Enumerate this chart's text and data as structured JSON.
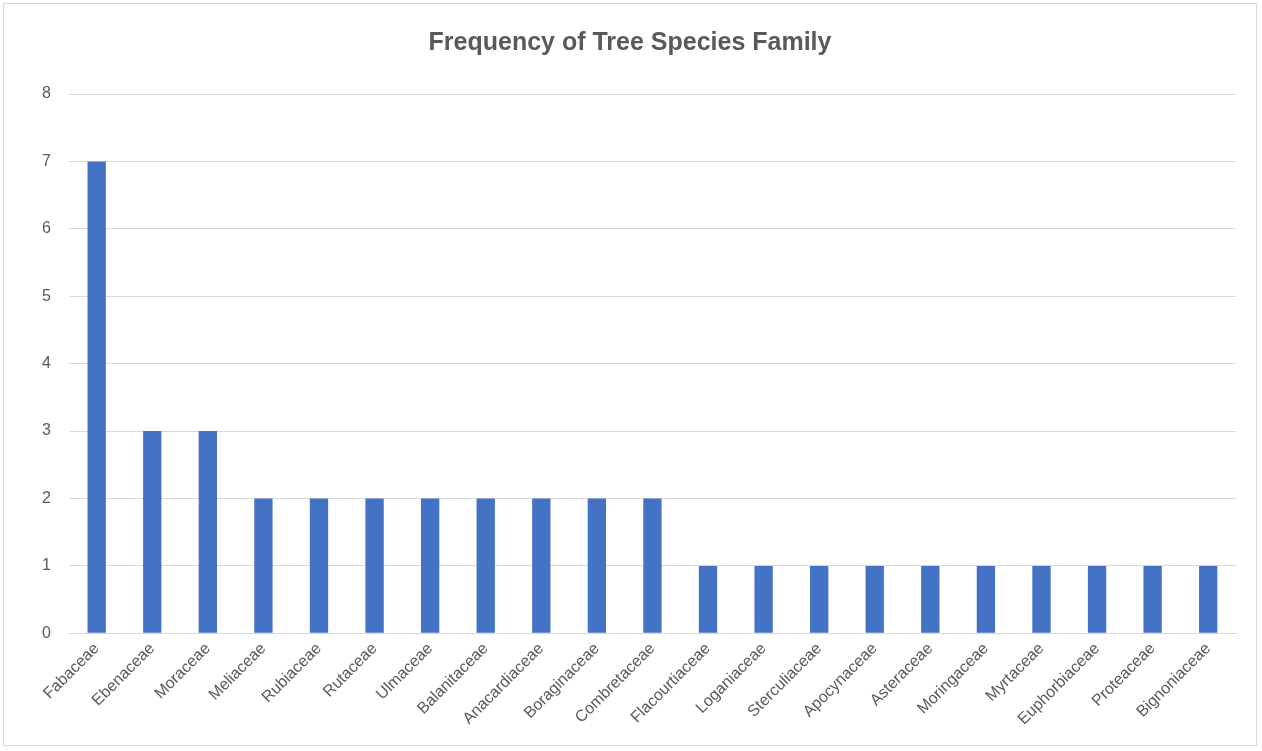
{
  "chart_data": {
    "type": "bar",
    "title": "Frequency of Tree Species Family",
    "categories": [
      "Fabaceae",
      "Ebenaceae",
      "Moraceae",
      "Meliaceae",
      "Rubiaceae",
      "Rutaceae",
      "Ulmaceae",
      "Balanitaceae",
      "Anacardiaceae",
      "Boraginaceae",
      "Combretaceae",
      "Flacourtiaceae",
      "Loganiaceae",
      "Sterculiaceae",
      "Apocynaceae",
      "Asteraceae",
      "Moringaceae",
      "Myrtaceae",
      "Euphorbiaceae",
      "Proteaceae",
      "Bignoniaceae"
    ],
    "values": [
      7,
      3,
      3,
      2,
      2,
      2,
      2,
      2,
      2,
      2,
      2,
      1,
      1,
      1,
      1,
      1,
      1,
      1,
      1,
      1,
      1
    ],
    "color": "#4472c4",
    "ylim": [
      0,
      8
    ],
    "yticks": [
      0,
      1,
      2,
      3,
      4,
      5,
      6,
      7,
      8
    ],
    "grid": "y"
  }
}
